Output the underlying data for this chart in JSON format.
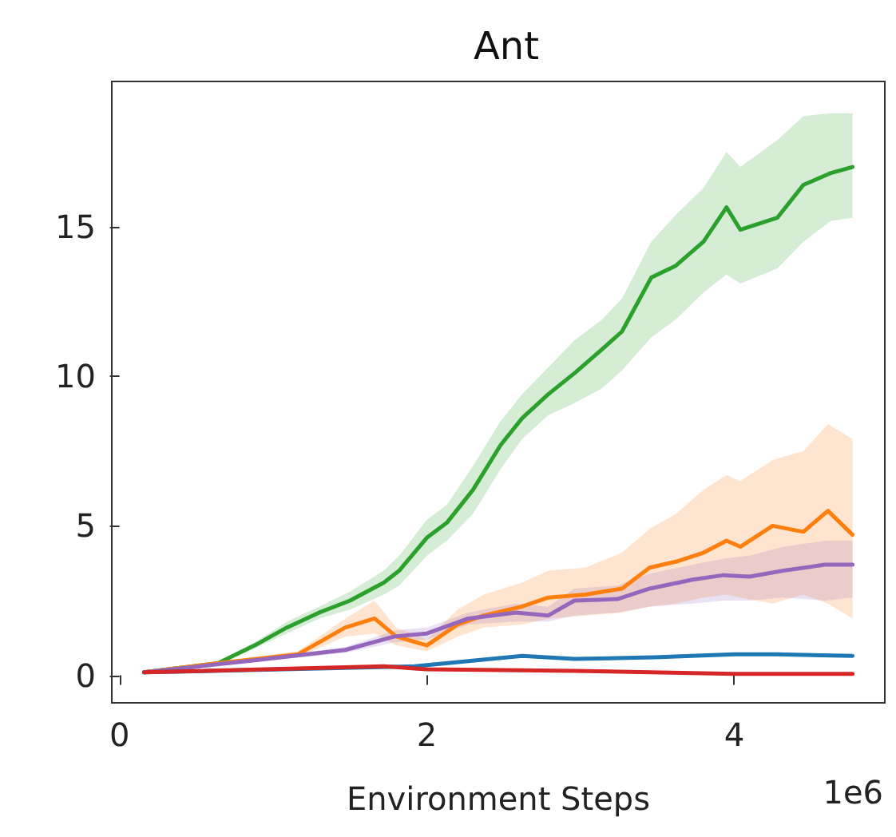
{
  "chart_data": {
    "type": "line",
    "title": "Ant",
    "xlabel": "Environment Steps",
    "annotations": [
      "1e6"
    ],
    "xlim": [
      -0.05,
      4.98
    ],
    "xticks": [
      0,
      2,
      4
    ],
    "ylim": [
      -0.92,
      19.86
    ],
    "yticks": [
      0,
      5,
      10,
      15
    ],
    "grid": false,
    "marker": "none",
    "line_style": "solid",
    "series": [
      {
        "color": "#2ca02c",
        "x": [
          0.16,
          0.64,
          0.88,
          1.09,
          1.3,
          1.5,
          1.72,
          1.82,
          2.0,
          2.13,
          2.3,
          2.48,
          2.62,
          2.79,
          2.96,
          3.14,
          3.27,
          3.46,
          3.62,
          3.8,
          3.95,
          4.04,
          4.28,
          4.45,
          4.63,
          4.77
        ],
        "values": [
          0.1,
          0.4,
          1.0,
          1.6,
          2.1,
          2.5,
          3.1,
          3.5,
          4.6,
          5.1,
          6.2,
          7.7,
          8.6,
          9.4,
          10.1,
          10.9,
          11.5,
          13.3,
          13.7,
          14.5,
          15.65,
          14.9,
          15.3,
          16.4,
          16.8,
          17.0
        ],
        "lower": [
          0.1,
          0.35,
          0.9,
          1.4,
          1.9,
          2.2,
          2.7,
          3.0,
          4.0,
          4.5,
          5.4,
          6.9,
          7.9,
          8.7,
          9.1,
          9.6,
          10.2,
          11.3,
          11.9,
          12.8,
          13.4,
          13.1,
          13.6,
          14.5,
          15.2,
          15.3
        ],
        "upper": [
          0.1,
          0.45,
          1.1,
          1.8,
          2.3,
          2.8,
          3.5,
          4.0,
          5.2,
          5.7,
          7.0,
          8.5,
          9.4,
          10.3,
          11.2,
          11.9,
          12.6,
          14.5,
          15.4,
          16.3,
          17.5,
          17.0,
          17.9,
          18.7,
          18.8,
          18.8
        ]
      },
      {
        "color": "#ff7f0e",
        "x": [
          0.16,
          0.64,
          1.16,
          1.47,
          1.66,
          1.8,
          2.0,
          2.2,
          2.37,
          2.62,
          2.79,
          3.03,
          3.27,
          3.45,
          3.62,
          3.8,
          3.95,
          4.04,
          4.25,
          4.45,
          4.61,
          4.77
        ],
        "values": [
          0.1,
          0.4,
          0.7,
          1.6,
          1.9,
          1.3,
          1.0,
          1.7,
          2.0,
          2.3,
          2.6,
          2.7,
          2.9,
          3.6,
          3.8,
          4.1,
          4.5,
          4.3,
          5.0,
          4.8,
          5.5,
          4.7
        ],
        "lower": [
          0.1,
          0.35,
          0.6,
          1.3,
          1.4,
          1.0,
          0.8,
          1.3,
          1.6,
          1.7,
          1.9,
          2.0,
          2.1,
          2.3,
          2.4,
          2.6,
          2.7,
          2.6,
          2.4,
          2.7,
          2.4,
          1.9
        ],
        "upper": [
          0.1,
          0.45,
          0.8,
          1.9,
          2.5,
          1.6,
          1.2,
          2.2,
          2.7,
          3.1,
          3.5,
          3.6,
          4.1,
          4.9,
          5.4,
          6.2,
          6.7,
          6.5,
          7.2,
          7.5,
          8.4,
          7.9
        ]
      },
      {
        "color": "#9467bd",
        "x": [
          0.16,
          0.88,
          1.47,
          1.79,
          2.0,
          2.27,
          2.58,
          2.79,
          2.96,
          3.24,
          3.45,
          3.73,
          3.93,
          4.1,
          4.32,
          4.59,
          4.77
        ],
        "values": [
          0.1,
          0.5,
          0.85,
          1.3,
          1.4,
          1.9,
          2.1,
          2.0,
          2.5,
          2.55,
          2.9,
          3.2,
          3.35,
          3.3,
          3.5,
          3.7,
          3.7
        ],
        "lower": [
          0.1,
          0.45,
          0.75,
          1.1,
          1.2,
          1.7,
          1.8,
          1.8,
          2.0,
          2.1,
          2.3,
          2.4,
          2.5,
          2.5,
          2.6,
          2.5,
          2.6
        ],
        "upper": [
          0.1,
          0.55,
          0.95,
          1.5,
          1.6,
          2.1,
          2.4,
          2.3,
          2.9,
          3.0,
          3.4,
          3.7,
          3.9,
          4.0,
          4.3,
          4.5,
          4.5
        ]
      },
      {
        "color": "#1f77b4",
        "x": [
          0.16,
          1.92,
          2.62,
          2.96,
          3.48,
          4.0,
          4.28,
          4.77
        ],
        "values": [
          0.1,
          0.3,
          0.65,
          0.55,
          0.6,
          0.7,
          0.7,
          0.65
        ]
      },
      {
        "color": "#d62728",
        "x": [
          0.16,
          1.72,
          2.0,
          2.96,
          4.0,
          4.77
        ],
        "values": [
          0.1,
          0.3,
          0.2,
          0.15,
          0.05,
          0.05
        ]
      }
    ]
  }
}
